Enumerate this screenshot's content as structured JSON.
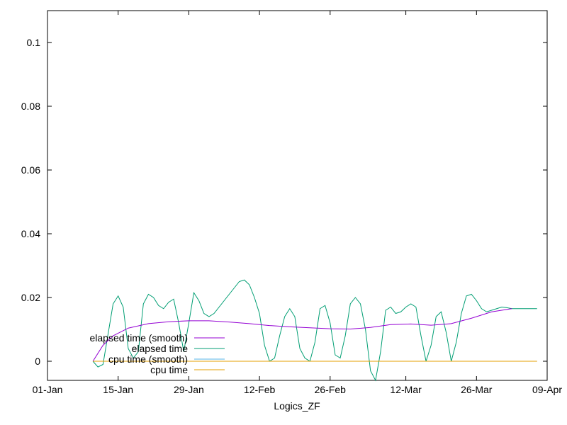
{
  "chart_data": {
    "type": "line",
    "title": "",
    "xlabel": "Logics_ZF",
    "ylabel": "",
    "x_axis": {
      "kind": "date",
      "range": [
        "2024-01-01",
        "2024-04-09"
      ],
      "ticks": [
        {
          "date": "2024-01-01",
          "label": "01-Jan"
        },
        {
          "date": "2024-01-15",
          "label": "15-Jan"
        },
        {
          "date": "2024-01-29",
          "label": "29-Jan"
        },
        {
          "date": "2024-02-12",
          "label": "12-Feb"
        },
        {
          "date": "2024-02-26",
          "label": "26-Feb"
        },
        {
          "date": "2024-03-12",
          "label": "12-Mar"
        },
        {
          "date": "2024-03-26",
          "label": "26-Mar"
        },
        {
          "date": "2024-04-09",
          "label": "09-Apr"
        }
      ]
    },
    "y_axis": {
      "range": [
        -0.006,
        0.11
      ],
      "ticks": [
        {
          "value": 0,
          "label": "0"
        },
        {
          "value": 0.02,
          "label": "0.02"
        },
        {
          "value": 0.04,
          "label": "0.04"
        },
        {
          "value": 0.06,
          "label": "0.06"
        },
        {
          "value": 0.08,
          "label": "0.08"
        },
        {
          "value": 0.1,
          "label": "0.1"
        }
      ]
    },
    "grid": false,
    "legend": {
      "placement": "bottom-left",
      "order": [
        "elapsed time (smooth)",
        "elapsed time",
        "cpu time (smooth)",
        "cpu time"
      ]
    },
    "series": [
      {
        "name": "elapsed time (smooth)",
        "color": "#9400d3",
        "points": [
          [
            "2024-01-10",
            0.0
          ],
          [
            "2024-01-12",
            0.005
          ],
          [
            "2024-01-14",
            0.008
          ],
          [
            "2024-01-17",
            0.0104
          ],
          [
            "2024-01-21",
            0.0118
          ],
          [
            "2024-01-25",
            0.0124
          ],
          [
            "2024-01-29",
            0.0127
          ],
          [
            "2024-02-02",
            0.0127
          ],
          [
            "2024-02-06",
            0.0123
          ],
          [
            "2024-02-10",
            0.0118
          ],
          [
            "2024-02-14",
            0.0112
          ],
          [
            "2024-02-18",
            0.0108
          ],
          [
            "2024-02-22",
            0.0105
          ],
          [
            "2024-02-26",
            0.0102
          ],
          [
            "2024-03-01",
            0.0101
          ],
          [
            "2024-03-05",
            0.0106
          ],
          [
            "2024-03-09",
            0.0115
          ],
          [
            "2024-03-13",
            0.0117
          ],
          [
            "2024-03-17",
            0.0113
          ],
          [
            "2024-03-21",
            0.0118
          ],
          [
            "2024-03-25",
            0.0135
          ],
          [
            "2024-03-29",
            0.0155
          ],
          [
            "2024-04-02",
            0.0165
          ]
        ]
      },
      {
        "name": "elapsed time",
        "color": "#009e73",
        "points": [
          [
            "2024-01-10",
            0.0
          ],
          [
            "2024-01-11",
            -0.0018
          ],
          [
            "2024-01-12",
            -0.001
          ],
          [
            "2024-01-14",
            0.018
          ],
          [
            "2024-01-15",
            0.0205
          ],
          [
            "2024-01-16",
            0.017
          ],
          [
            "2024-01-17",
            0.004
          ],
          [
            "2024-01-18",
            0.001
          ],
          [
            "2024-01-19",
            0.003
          ],
          [
            "2024-01-20",
            0.018
          ],
          [
            "2024-01-21",
            0.021
          ],
          [
            "2024-01-22",
            0.02
          ],
          [
            "2024-01-23",
            0.0175
          ],
          [
            "2024-01-24",
            0.0165
          ],
          [
            "2024-01-25",
            0.0185
          ],
          [
            "2024-01-26",
            0.0195
          ],
          [
            "2024-01-27",
            0.012
          ],
          [
            "2024-01-28",
            0.003
          ],
          [
            "2024-01-29",
            0.012
          ],
          [
            "2024-01-30",
            0.0215
          ],
          [
            "2024-01-31",
            0.019
          ],
          [
            "2024-02-01",
            0.015
          ],
          [
            "2024-02-02",
            0.014
          ],
          [
            "2024-02-03",
            0.015
          ],
          [
            "2024-02-05",
            0.019
          ],
          [
            "2024-02-07",
            0.023
          ],
          [
            "2024-02-08",
            0.025
          ],
          [
            "2024-02-09",
            0.0255
          ],
          [
            "2024-02-10",
            0.024
          ],
          [
            "2024-02-11",
            0.02
          ],
          [
            "2024-02-12",
            0.015
          ],
          [
            "2024-02-13",
            0.005
          ],
          [
            "2024-02-14",
            0.0
          ],
          [
            "2024-02-15",
            0.001
          ],
          [
            "2024-02-16",
            0.008
          ],
          [
            "2024-02-17",
            0.014
          ],
          [
            "2024-02-18",
            0.0165
          ],
          [
            "2024-02-19",
            0.014
          ],
          [
            "2024-02-20",
            0.004
          ],
          [
            "2024-02-21",
            0.001
          ],
          [
            "2024-02-22",
            0.0
          ],
          [
            "2024-02-23",
            0.006
          ],
          [
            "2024-02-24",
            0.0165
          ],
          [
            "2024-02-25",
            0.0175
          ],
          [
            "2024-02-26",
            0.012
          ],
          [
            "2024-02-27",
            0.002
          ],
          [
            "2024-02-28",
            0.001
          ],
          [
            "2024-02-29",
            0.008
          ],
          [
            "2024-03-01",
            0.018
          ],
          [
            "2024-03-02",
            0.02
          ],
          [
            "2024-03-03",
            0.018
          ],
          [
            "2024-03-04",
            0.01
          ],
          [
            "2024-03-05",
            -0.003
          ],
          [
            "2024-03-06",
            -0.006
          ],
          [
            "2024-03-07",
            0.003
          ],
          [
            "2024-03-08",
            0.016
          ],
          [
            "2024-03-09",
            0.017
          ],
          [
            "2024-03-10",
            0.015
          ],
          [
            "2024-03-11",
            0.0155
          ],
          [
            "2024-03-12",
            0.017
          ],
          [
            "2024-03-13",
            0.018
          ],
          [
            "2024-03-14",
            0.017
          ],
          [
            "2024-03-15",
            0.008
          ],
          [
            "2024-03-16",
            0.0
          ],
          [
            "2024-03-17",
            0.005
          ],
          [
            "2024-03-18",
            0.014
          ],
          [
            "2024-03-19",
            0.0155
          ],
          [
            "2024-03-20",
            0.009
          ],
          [
            "2024-03-21",
            0.0
          ],
          [
            "2024-03-22",
            0.006
          ],
          [
            "2024-03-23",
            0.015
          ],
          [
            "2024-03-24",
            0.0205
          ],
          [
            "2024-03-25",
            0.021
          ],
          [
            "2024-03-26",
            0.019
          ],
          [
            "2024-03-27",
            0.0165
          ],
          [
            "2024-03-28",
            0.0155
          ],
          [
            "2024-03-29",
            0.016
          ],
          [
            "2024-03-30",
            0.0165
          ],
          [
            "2024-03-31",
            0.017
          ],
          [
            "2024-04-01",
            0.0168
          ],
          [
            "2024-04-02",
            0.0165
          ],
          [
            "2024-04-07",
            0.0165
          ]
        ]
      },
      {
        "name": "cpu time (smooth)",
        "color": "#56b4e9",
        "points": [
          [
            "2024-01-10",
            0
          ],
          [
            "2024-04-07",
            0
          ]
        ]
      },
      {
        "name": "cpu time",
        "color": "#e69f00",
        "points": [
          [
            "2024-01-10",
            0
          ],
          [
            "2024-04-07",
            0
          ]
        ]
      }
    ]
  }
}
